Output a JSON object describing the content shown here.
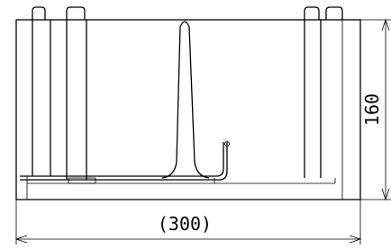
{
  "dimensions": {
    "width": "(300)",
    "height": "160"
  }
}
